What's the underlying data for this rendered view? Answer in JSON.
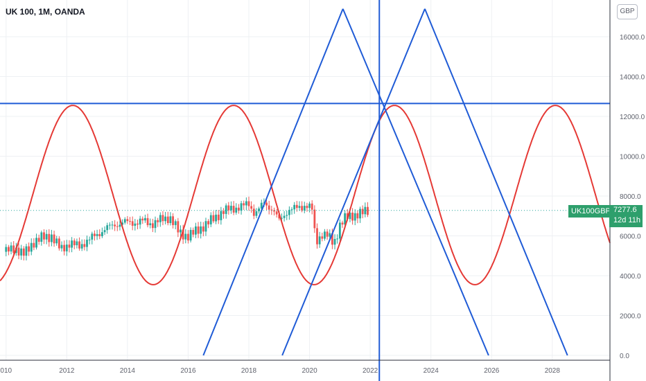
{
  "header": {
    "title": "UK 100, 1M, OANDA",
    "currency": "GBP"
  },
  "last_price": {
    "symbol": "UK100GBP",
    "value": "7277.6",
    "countdown": "12d 11h"
  },
  "colors": {
    "up": "#26a69a",
    "down": "#ef5350",
    "blue_lines": "#1f5bd6",
    "sine": "#e53935",
    "tag_bg": "#2e9f6c"
  },
  "chart_data": {
    "type": "line",
    "x_ticks": [
      "010",
      "2012",
      "2014",
      "2016",
      "2018",
      "2020",
      "2022",
      "2024",
      "2026",
      "2028"
    ],
    "y_ticks": [
      "0.0",
      "2000.0",
      "4000.0",
      "6000.0",
      "8000.0",
      "10000.0",
      "12000.0",
      "14000.0",
      "16000.0"
    ],
    "ylim": [
      0,
      17000
    ],
    "xlim": [
      2009.8,
      2029.9
    ],
    "grid": true,
    "price_series": [
      [
        2010.0,
        5200
      ],
      [
        2010.3,
        5400
      ],
      [
        2010.6,
        5050
      ],
      [
        2010.9,
        5700
      ],
      [
        2011.2,
        5900
      ],
      [
        2011.5,
        6000
      ],
      [
        2011.8,
        5300
      ],
      [
        2012.1,
        5650
      ],
      [
        2012.4,
        5450
      ],
      [
        2012.7,
        5800
      ],
      [
        2013.0,
        6050
      ],
      [
        2013.3,
        6400
      ],
      [
        2013.6,
        6550
      ],
      [
        2013.9,
        6700
      ],
      [
        2014.2,
        6650
      ],
      [
        2014.5,
        6750
      ],
      [
        2014.8,
        6600
      ],
      [
        2015.1,
        6800
      ],
      [
        2015.4,
        6950
      ],
      [
        2015.7,
        6150
      ],
      [
        2016.0,
        6000
      ],
      [
        2016.2,
        6150
      ],
      [
        2016.5,
        6500
      ],
      [
        2016.8,
        6800
      ],
      [
        2017.1,
        7200
      ],
      [
        2017.4,
        7350
      ],
      [
        2017.7,
        7450
      ],
      [
        2018.0,
        7600
      ],
      [
        2018.2,
        7100
      ],
      [
        2018.5,
        7650
      ],
      [
        2018.8,
        7300
      ],
      [
        2019.0,
        6750
      ],
      [
        2019.3,
        7300
      ],
      [
        2019.6,
        7400
      ],
      [
        2019.9,
        7550
      ],
      [
        2020.1,
        7300
      ],
      [
        2020.2,
        5650
      ],
      [
        2020.4,
        6100
      ],
      [
        2020.6,
        6000
      ],
      [
        2020.8,
        5600
      ],
      [
        2021.0,
        6550
      ],
      [
        2021.2,
        6900
      ],
      [
        2021.4,
        7050
      ],
      [
        2021.7,
        7100
      ],
      [
        2021.9,
        7277.6
      ]
    ],
    "sine_wave": {
      "period_years": 5.3,
      "peak_year": 2012.2,
      "high": 12550,
      "low": 3550
    },
    "horizontal_line": 12650,
    "vertical_line_year": 2022.3,
    "diagonal_lines": [
      {
        "from": [
          2016.5,
          0
        ],
        "to": [
          2021.1,
          17400
        ]
      },
      {
        "from": [
          2019.1,
          0
        ],
        "to": [
          2023.8,
          17400
        ]
      },
      {
        "from": [
          2021.1,
          17400
        ],
        "to": [
          2025.9,
          0
        ]
      },
      {
        "from": [
          2023.8,
          17400
        ],
        "to": [
          2028.5,
          0
        ]
      }
    ],
    "last_price": 7277.6
  }
}
